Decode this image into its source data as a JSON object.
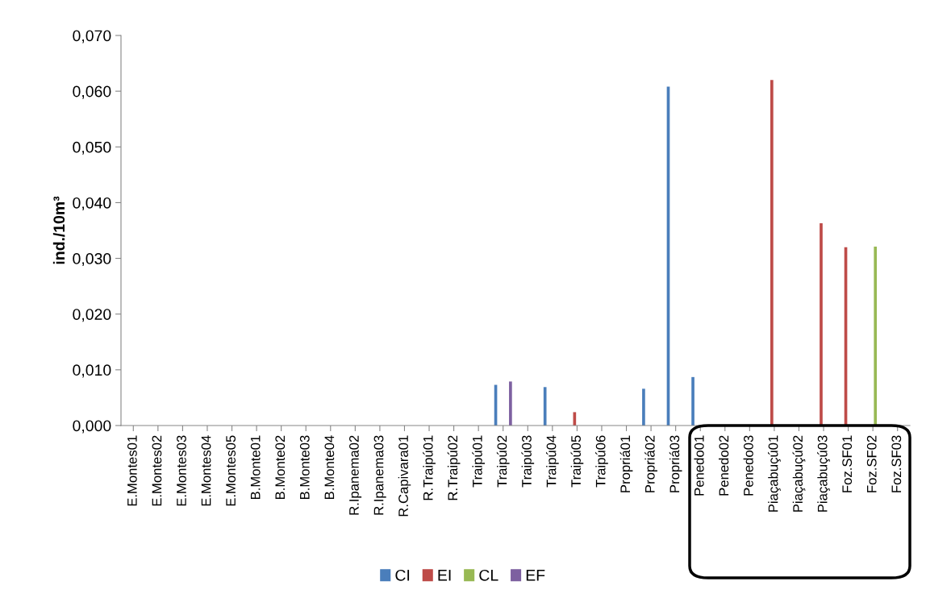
{
  "chart_data": {
    "type": "bar",
    "ylabel": "ind./10m³",
    "categories": [
      "E.Montes01",
      "E.Montes02",
      "E.Montes03",
      "E.Montes04",
      "E.Montes05",
      "B.Monte01",
      "B.Monte02",
      "B.Monte03",
      "B.Monte04",
      "R.Ipanema02",
      "R.Ipanema03",
      "R.Capivara01",
      "R.Traipú01",
      "R.Traipú02",
      "Traipú01",
      "Traipú02",
      "Traipú03",
      "Traipú04",
      "Traipú05",
      "Traipú06",
      "Propriá01",
      "Propriá02",
      "Propriá03",
      "Penedo01",
      "Penedo02",
      "Penedo03",
      "Piaçabuçú01",
      "Piaçabuçú02",
      "Piaçabuçú03",
      "Foz.SF01",
      "Foz.SF02",
      "Foz.SF03"
    ],
    "series": [
      {
        "name": "CI",
        "color": "#4a7ebb",
        "values": [
          null,
          null,
          null,
          null,
          null,
          null,
          null,
          null,
          null,
          null,
          null,
          null,
          null,
          null,
          null,
          0.0073,
          null,
          0.0069,
          null,
          null,
          null,
          0.0066,
          0.0608,
          0.0087,
          null,
          null,
          null,
          null,
          null,
          null,
          null,
          null
        ]
      },
      {
        "name": "EI",
        "color": "#be4b48",
        "values": [
          null,
          null,
          null,
          null,
          null,
          null,
          null,
          null,
          null,
          null,
          null,
          null,
          null,
          null,
          null,
          null,
          null,
          null,
          0.0024,
          null,
          null,
          null,
          null,
          null,
          null,
          null,
          0.062,
          null,
          0.0363,
          0.032,
          null,
          null
        ]
      },
      {
        "name": "CL",
        "color": "#98b954",
        "values": [
          null,
          null,
          null,
          null,
          null,
          null,
          null,
          null,
          null,
          null,
          null,
          null,
          null,
          null,
          null,
          null,
          null,
          null,
          null,
          null,
          null,
          null,
          null,
          null,
          null,
          null,
          null,
          null,
          null,
          null,
          0.0321,
          null
        ]
      },
      {
        "name": "EF",
        "color": "#7d60a0",
        "values": [
          null,
          null,
          null,
          null,
          null,
          null,
          null,
          null,
          null,
          null,
          null,
          null,
          null,
          null,
          null,
          0.0079,
          null,
          null,
          null,
          null,
          null,
          null,
          null,
          null,
          null,
          null,
          null,
          null,
          null,
          null,
          null,
          null
        ]
      }
    ],
    "ylim": [
      0,
      0.07
    ],
    "yticks": [
      {
        "value": 0,
        "label": "0,000"
      },
      {
        "value": 0.01,
        "label": "0,010"
      },
      {
        "value": 0.02,
        "label": "0,020"
      },
      {
        "value": 0.03,
        "label": "0,030"
      },
      {
        "value": 0.04,
        "label": "0,040"
      },
      {
        "value": 0.05,
        "label": "0,050"
      },
      {
        "value": 0.06,
        "label": "0,060"
      },
      {
        "value": 0.07,
        "label": "0,070"
      }
    ],
    "grid": false,
    "legend": "bottom"
  }
}
